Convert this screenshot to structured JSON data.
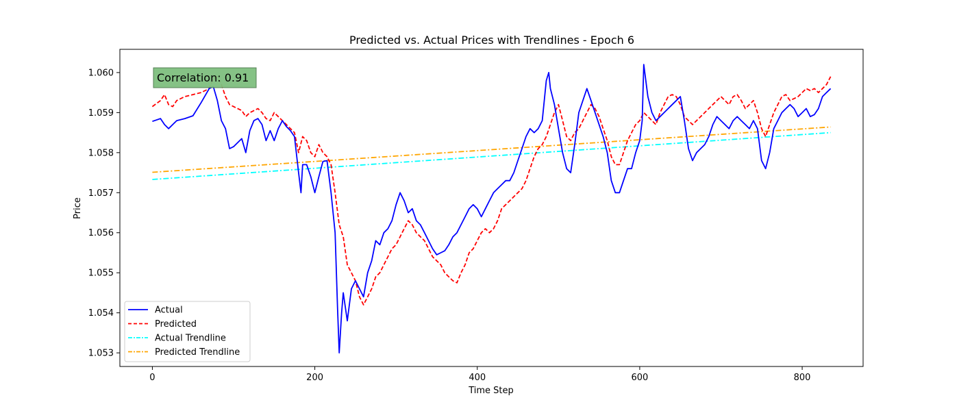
{
  "chart_data": {
    "type": "line",
    "title": "Predicted vs. Actual Prices with Trendlines - Epoch 6",
    "xlabel": "Time Step",
    "ylabel": "Price",
    "xlim": [
      -40,
      875
    ],
    "ylim": [
      1.05266,
      1.06058
    ],
    "xticks": [
      0,
      200,
      400,
      600,
      800
    ],
    "yticks": [
      1.053,
      1.054,
      1.055,
      1.056,
      1.057,
      1.058,
      1.059,
      1.06
    ],
    "ytick_labels": [
      "1.053",
      "1.054",
      "1.055",
      "1.056",
      "1.057",
      "1.058",
      "1.059",
      "1.060"
    ],
    "grid": false,
    "legend_position": "lower left",
    "annotation": "Correlation: 0.91",
    "colors": {
      "actual": "#0000ff",
      "predicted": "#ff0000",
      "actual_trend": "#00ffff",
      "predicted_trend": "#ffa500",
      "annotation_box": "#7fbf7f"
    },
    "series": [
      {
        "name": "Actual",
        "style": "solid",
        "color": "#0000ff",
        "x": [
          0,
          10,
          15,
          20,
          25,
          30,
          40,
          50,
          60,
          70,
          75,
          80,
          85,
          90,
          95,
          100,
          110,
          115,
          120,
          125,
          130,
          135,
          140,
          145,
          150,
          155,
          160,
          165,
          170,
          175,
          180,
          183,
          185,
          190,
          195,
          200,
          205,
          210,
          215,
          220,
          225,
          228,
          230,
          233,
          235,
          240,
          245,
          250,
          255,
          260,
          265,
          270,
          275,
          280,
          285,
          290,
          295,
          300,
          305,
          310,
          315,
          320,
          325,
          330,
          335,
          340,
          345,
          350,
          355,
          360,
          365,
          370,
          375,
          380,
          385,
          390,
          395,
          400,
          405,
          410,
          415,
          420,
          425,
          430,
          435,
          440,
          445,
          450,
          455,
          460,
          465,
          470,
          475,
          480,
          485,
          488,
          490,
          495,
          500,
          505,
          510,
          515,
          520,
          525,
          530,
          535,
          540,
          545,
          550,
          555,
          560,
          565,
          570,
          575,
          580,
          585,
          590,
          595,
          600,
          603,
          605,
          610,
          615,
          620,
          625,
          630,
          635,
          640,
          645,
          650,
          655,
          660,
          665,
          670,
          675,
          680,
          685,
          690,
          695,
          700,
          705,
          710,
          715,
          720,
          725,
          730,
          735,
          740,
          745,
          750,
          755,
          760,
          765,
          770,
          775,
          780,
          785,
          790,
          795,
          800,
          805,
          810,
          815,
          820,
          825,
          830,
          835
        ],
        "values": [
          1.05878,
          1.05885,
          1.0587,
          1.0586,
          1.0587,
          1.0588,
          1.05885,
          1.05892,
          1.05925,
          1.0596,
          1.05965,
          1.0593,
          1.0588,
          1.0586,
          1.0581,
          1.05815,
          1.05835,
          1.058,
          1.05855,
          1.0588,
          1.05885,
          1.0587,
          1.0583,
          1.05855,
          1.0583,
          1.0586,
          1.0588,
          1.05865,
          1.05855,
          1.0584,
          1.0575,
          1.057,
          1.0577,
          1.0577,
          1.0574,
          1.057,
          1.0574,
          1.05778,
          1.0578,
          1.057,
          1.056,
          1.0541,
          1.053,
          1.054,
          1.0545,
          1.0538,
          1.0546,
          1.0548,
          1.0546,
          1.0544,
          1.055,
          1.0553,
          1.0558,
          1.0557,
          1.056,
          1.0561,
          1.0563,
          1.0567,
          1.057,
          1.0568,
          1.0565,
          1.0566,
          1.0563,
          1.0562,
          1.056,
          1.0558,
          1.0556,
          1.05545,
          1.0555,
          1.05555,
          1.0557,
          1.0559,
          1.056,
          1.0562,
          1.0564,
          1.0566,
          1.0567,
          1.0566,
          1.0564,
          1.0566,
          1.0568,
          1.057,
          1.0571,
          1.0572,
          1.0573,
          1.0573,
          1.0575,
          1.0578,
          1.0581,
          1.0584,
          1.0586,
          1.0585,
          1.0586,
          1.0588,
          1.0598,
          1.06,
          1.0596,
          1.0592,
          1.0586,
          1.058,
          1.0576,
          1.0575,
          1.0582,
          1.059,
          1.0593,
          1.0596,
          1.0593,
          1.059,
          1.0587,
          1.0584,
          1.058,
          1.0573,
          1.057,
          1.057,
          1.0573,
          1.0576,
          1.0576,
          1.058,
          1.0583,
          1.0588,
          1.0602,
          1.0594,
          1.059,
          1.0588,
          1.0589,
          1.059,
          1.0591,
          1.0592,
          1.0593,
          1.0594,
          1.0588,
          1.0581,
          1.0578,
          1.058,
          1.0581,
          1.0582,
          1.0584,
          1.0587,
          1.0589,
          1.0588,
          1.0587,
          1.0586,
          1.0588,
          1.0589,
          1.0588,
          1.0587,
          1.0586,
          1.0588,
          1.0586,
          1.0578,
          1.0576,
          1.058,
          1.0586,
          1.0588,
          1.059,
          1.0591,
          1.0592,
          1.0591,
          1.0589,
          1.059,
          1.0591,
          1.0589,
          1.05895,
          1.0591,
          1.0594,
          1.0595,
          1.0596
        ]
      },
      {
        "name": "Predicted",
        "style": "dashed",
        "color": "#ff0000",
        "x": [
          0,
          10,
          15,
          20,
          25,
          30,
          40,
          50,
          60,
          70,
          75,
          80,
          85,
          90,
          95,
          100,
          110,
          115,
          120,
          125,
          130,
          135,
          140,
          145,
          150,
          155,
          160,
          165,
          170,
          175,
          180,
          185,
          190,
          195,
          200,
          205,
          210,
          215,
          220,
          225,
          230,
          235,
          240,
          245,
          250,
          255,
          260,
          265,
          270,
          275,
          280,
          285,
          290,
          295,
          300,
          305,
          310,
          315,
          320,
          325,
          330,
          335,
          340,
          345,
          350,
          355,
          360,
          365,
          370,
          375,
          380,
          385,
          390,
          395,
          400,
          405,
          410,
          415,
          420,
          425,
          430,
          435,
          440,
          445,
          450,
          455,
          460,
          465,
          470,
          475,
          480,
          485,
          490,
          495,
          500,
          505,
          510,
          515,
          520,
          525,
          530,
          535,
          540,
          545,
          550,
          555,
          560,
          565,
          570,
          575,
          580,
          585,
          590,
          595,
          600,
          605,
          610,
          615,
          620,
          625,
          630,
          635,
          640,
          645,
          650,
          655,
          660,
          665,
          670,
          675,
          680,
          685,
          690,
          695,
          700,
          705,
          710,
          715,
          720,
          725,
          730,
          735,
          740,
          745,
          750,
          755,
          760,
          765,
          770,
          775,
          780,
          785,
          790,
          795,
          800,
          805,
          810,
          815,
          820,
          825,
          830,
          835
        ],
        "values": [
          1.05915,
          1.0593,
          1.05945,
          1.0592,
          1.05915,
          1.0593,
          1.0594,
          1.05945,
          1.0595,
          1.0596,
          1.05985,
          1.0599,
          1.0597,
          1.0594,
          1.0592,
          1.05915,
          1.05905,
          1.0589,
          1.059,
          1.05905,
          1.0591,
          1.059,
          1.05885,
          1.0588,
          1.059,
          1.0589,
          1.0588,
          1.0587,
          1.0586,
          1.0585,
          1.058,
          1.0584,
          1.0583,
          1.058,
          1.0579,
          1.0582,
          1.058,
          1.0579,
          1.0577,
          1.057,
          1.0562,
          1.0559,
          1.0552,
          1.055,
          1.0548,
          1.0544,
          1.0542,
          1.0544,
          1.0546,
          1.0549,
          1.055,
          1.0552,
          1.0554,
          1.0556,
          1.0557,
          1.0559,
          1.0561,
          1.0563,
          1.0562,
          1.056,
          1.0559,
          1.0558,
          1.0556,
          1.0554,
          1.0553,
          1.0552,
          1.055,
          1.0549,
          1.0548,
          1.05475,
          1.055,
          1.0552,
          1.0555,
          1.0556,
          1.0558,
          1.056,
          1.0561,
          1.056,
          1.0561,
          1.0563,
          1.0566,
          1.0567,
          1.0568,
          1.0569,
          1.057,
          1.0571,
          1.0573,
          1.0576,
          1.0579,
          1.0581,
          1.0582,
          1.0584,
          1.0587,
          1.059,
          1.0592,
          1.0588,
          1.0584,
          1.0583,
          1.0585,
          1.0586,
          1.0588,
          1.059,
          1.0592,
          1.0591,
          1.0589,
          1.0586,
          1.0583,
          1.0579,
          1.0577,
          1.0577,
          1.058,
          1.0583,
          1.0585,
          1.0587,
          1.0588,
          1.059,
          1.0589,
          1.0588,
          1.0587,
          1.059,
          1.0592,
          1.0594,
          1.05945,
          1.0594,
          1.0592,
          1.0589,
          1.0588,
          1.0587,
          1.0588,
          1.0589,
          1.059,
          1.0591,
          1.0592,
          1.0593,
          1.0594,
          1.0593,
          1.0592,
          1.0594,
          1.05945,
          1.0593,
          1.0591,
          1.0592,
          1.0593,
          1.059,
          1.0586,
          1.0584,
          1.0587,
          1.059,
          1.0592,
          1.0594,
          1.05945,
          1.0593,
          1.05935,
          1.0594,
          1.0595,
          1.0596,
          1.05955,
          1.0596,
          1.0595,
          1.0596,
          1.0597,
          1.0599
        ]
      },
      {
        "name": "Actual Trendline",
        "style": "dashdot",
        "color": "#00ffff",
        "x": [
          0,
          835
        ],
        "values": [
          1.05733,
          1.0585
        ]
      },
      {
        "name": "Predicted Trendline",
        "style": "dashdot",
        "color": "#ffa500",
        "x": [
          0,
          835
        ],
        "values": [
          1.05751,
          1.05864
        ]
      }
    ]
  }
}
